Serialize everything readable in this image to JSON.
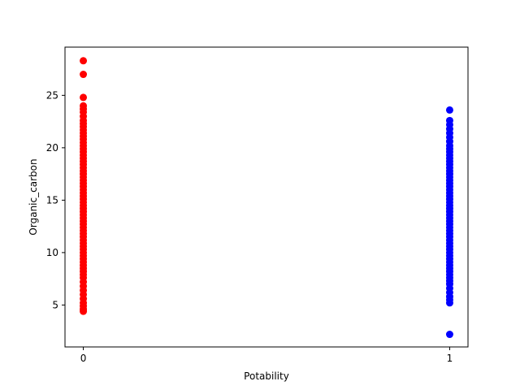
{
  "chart_data": {
    "type": "scatter",
    "xlabel": "Potability",
    "ylabel": "Organic_carbon",
    "xlim": [
      -0.05,
      1.05
    ],
    "ylim": [
      1.0,
      29.6
    ],
    "x_ticks": [
      0,
      1
    ],
    "x_tick_labels": [
      "0",
      "1"
    ],
    "y_ticks": [
      5,
      10,
      15,
      20,
      25
    ],
    "y_tick_labels": [
      "5",
      "10",
      "15",
      "20",
      "25"
    ],
    "grid": false,
    "series": [
      {
        "color": "#ff0000",
        "x": 0,
        "values": [
          28.3,
          27.0,
          24.8,
          24.0,
          23.7,
          23.4,
          23.0,
          22.6,
          22.3,
          22.0,
          21.7,
          21.4,
          21.1,
          20.8,
          20.5,
          20.2,
          19.9,
          19.6,
          19.3,
          19.0,
          18.7,
          18.4,
          18.1,
          17.8,
          17.5,
          17.2,
          16.9,
          16.6,
          16.3,
          16.0,
          15.7,
          15.4,
          15.1,
          14.8,
          14.5,
          14.2,
          13.9,
          13.6,
          13.3,
          13.0,
          12.7,
          12.4,
          12.1,
          11.8,
          11.5,
          11.2,
          10.9,
          10.6,
          10.3,
          10.0,
          9.7,
          9.4,
          9.1,
          8.8,
          8.5,
          8.2,
          7.9,
          7.6,
          7.2,
          6.8,
          6.4,
          6.0,
          5.6,
          5.2,
          4.9,
          4.6,
          4.4
        ]
      },
      {
        "color": "#0000ff",
        "x": 1,
        "values": [
          23.6,
          22.6,
          22.2,
          21.8,
          21.4,
          21.0,
          20.6,
          20.2,
          19.9,
          19.6,
          19.3,
          19.0,
          18.7,
          18.4,
          18.1,
          17.8,
          17.5,
          17.2,
          16.9,
          16.6,
          16.3,
          16.0,
          15.7,
          15.4,
          15.1,
          14.8,
          14.5,
          14.2,
          13.9,
          13.6,
          13.3,
          13.0,
          12.7,
          12.4,
          12.1,
          11.8,
          11.5,
          11.2,
          10.9,
          10.6,
          10.3,
          10.0,
          9.7,
          9.4,
          9.1,
          8.8,
          8.5,
          8.2,
          7.9,
          7.6,
          7.3,
          7.0,
          6.6,
          6.2,
          5.8,
          5.5,
          5.2,
          2.2
        ]
      }
    ]
  }
}
